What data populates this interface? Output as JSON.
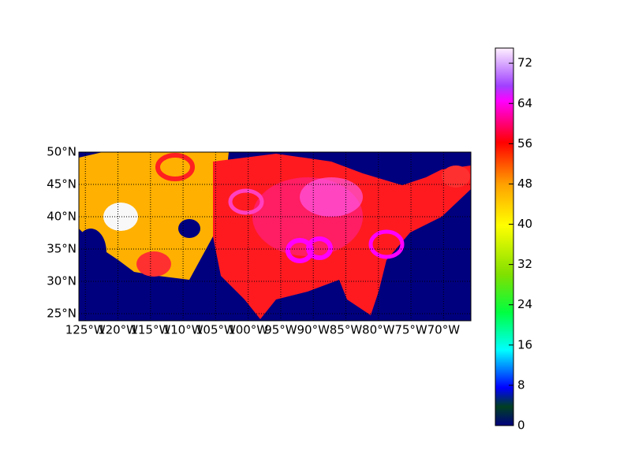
{
  "chart_data": {
    "type": "map",
    "xlim": [
      -126,
      -65.8
    ],
    "ylim": [
      23.9,
      50
    ],
    "xticks": [
      {
        "value": -125,
        "label": "125°W"
      },
      {
        "value": -120,
        "label": "120°W"
      },
      {
        "value": -115,
        "label": "115°W"
      },
      {
        "value": -110,
        "label": "110°W"
      },
      {
        "value": -105,
        "label": "105°W"
      },
      {
        "value": -100,
        "label": "100°W"
      },
      {
        "value": -95,
        "label": "95°W"
      },
      {
        "value": -90,
        "label": "90°W"
      },
      {
        "value": -85,
        "label": "85°W"
      },
      {
        "value": -80,
        "label": "80°W"
      },
      {
        "value": -75,
        "label": "75°W"
      },
      {
        "value": -70,
        "label": "70°W"
      }
    ],
    "yticks": [
      {
        "value": 25,
        "label": "25°N"
      },
      {
        "value": 30,
        "label": "30°N"
      },
      {
        "value": 35,
        "label": "35°N"
      },
      {
        "value": 40,
        "label": "40°N"
      },
      {
        "value": 45,
        "label": "45°N"
      },
      {
        "value": 50,
        "label": "50°N"
      }
    ],
    "grid": true,
    "colorbar": {
      "lim": [
        0,
        75
      ],
      "ticks": [
        0,
        8,
        16,
        24,
        32,
        40,
        48,
        56,
        64,
        72
      ]
    }
  }
}
